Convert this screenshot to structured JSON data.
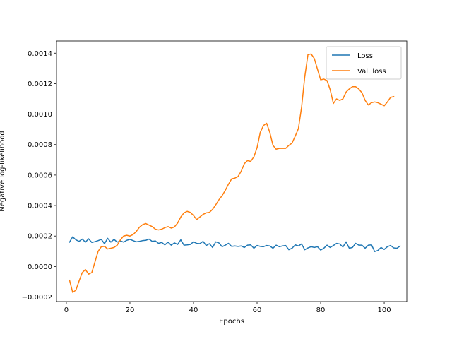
{
  "chart_data": {
    "type": "line",
    "title": "",
    "xlabel": "Epochs",
    "ylabel": "Negative log-likelihood",
    "xlim": [
      -3.1,
      107.1
    ],
    "ylim": [
      -0.00023,
      0.00148
    ],
    "xticks": [
      0,
      20,
      40,
      60,
      80,
      100
    ],
    "xtick_labels": [
      "0",
      "20",
      "40",
      "60",
      "80",
      "100"
    ],
    "yticks": [
      -0.0002,
      0.0,
      0.0002,
      0.0004,
      0.0006,
      0.0008,
      0.001,
      0.0012,
      0.0014
    ],
    "ytick_labels": [
      "−0.0002",
      "0.0000",
      "0.0002",
      "0.0004",
      "0.0006",
      "0.0008",
      "0.0010",
      "0.0012",
      "0.0014"
    ],
    "grid": false,
    "legend_position": "top-right",
    "x_start": 1,
    "series": [
      {
        "name": "Loss",
        "color": "#1f77b4",
        "values": [
          0.00016,
          0.000195,
          0.000175,
          0.000165,
          0.00018,
          0.00016,
          0.000182,
          0.000158,
          0.000163,
          0.00017,
          0.000178,
          0.00015,
          0.000185,
          0.00016,
          0.000178,
          0.00016,
          0.000168,
          0.00016,
          0.000172,
          0.000178,
          0.00017,
          0.000162,
          0.000165,
          0.00017,
          0.000172,
          0.00018,
          0.000165,
          0.000168,
          0.000152,
          0.000158,
          0.000142,
          0.00016,
          0.00014,
          0.000155,
          0.000145,
          0.000175,
          0.00014,
          0.000142,
          0.000145,
          0.000162,
          0.000152,
          0.00015,
          0.000165,
          0.000138,
          0.00015,
          0.000125,
          0.000162,
          0.000155,
          0.00013,
          0.00014,
          0.000152,
          0.000132,
          0.000135,
          0.000132,
          0.000135,
          0.000125,
          0.00014,
          0.000142,
          0.00012,
          0.000138,
          0.000132,
          0.00013,
          0.000138,
          0.000135,
          0.00012,
          0.00014,
          0.00013,
          0.000135,
          0.000138,
          0.00011,
          0.00012,
          0.000142,
          0.000135,
          0.000148,
          0.00011,
          0.000122,
          0.00013,
          0.000125,
          0.00013,
          0.000108,
          0.00012,
          0.00014,
          0.000125,
          0.000138,
          0.000152,
          0.000148,
          0.000128,
          0.000162,
          0.00012,
          0.000125,
          0.000152,
          0.00014,
          0.00014,
          0.00012,
          0.00014,
          0.000142,
          9.8e-05,
          0.000105,
          0.000125,
          0.000112,
          0.00013,
          0.000138,
          0.000122,
          0.00012,
          0.000135
        ]
      },
      {
        "name": "Val. loss",
        "color": "#ff7f0e",
        "values": [
          -9e-05,
          -0.00017,
          -0.000155,
          -9.5e-05,
          -4e-05,
          -2e-05,
          -5e-05,
          -4e-05,
          3e-05,
          0.0001,
          0.00013,
          0.000132,
          0.000115,
          0.00012,
          0.000125,
          0.00014,
          0.000175,
          0.0002,
          0.000205,
          0.0002,
          0.00021,
          0.00023,
          0.000258,
          0.000275,
          0.000282,
          0.000272,
          0.000262,
          0.000245,
          0.00024,
          0.000245,
          0.000255,
          0.000262,
          0.000252,
          0.00026,
          0.000285,
          0.000325,
          0.000352,
          0.000362,
          0.000355,
          0.000335,
          0.000308,
          0.000325,
          0.000342,
          0.000352,
          0.000355,
          0.000375,
          0.000405,
          0.000438,
          0.000465,
          0.0005,
          0.00054,
          0.000575,
          0.00058,
          0.00059,
          0.000625,
          0.000675,
          0.000695,
          0.00069,
          0.00072,
          0.00078,
          0.00088,
          0.000925,
          0.00094,
          0.00088,
          0.000795,
          0.00077,
          0.000775,
          0.000775,
          0.000775,
          0.000795,
          0.00081,
          0.000855,
          0.000905,
          0.001045,
          0.001245,
          0.00139,
          0.001395,
          0.001365,
          0.001295,
          0.001225,
          0.00123,
          0.00122,
          0.00116,
          0.00107,
          0.0011,
          0.00109,
          0.0011,
          0.001145,
          0.001165,
          0.00118,
          0.00118,
          0.001165,
          0.00114,
          0.00109,
          0.00106,
          0.001075,
          0.00108,
          0.001075,
          0.001065,
          0.001055,
          0.00108,
          0.00111,
          0.001115
        ]
      }
    ]
  }
}
